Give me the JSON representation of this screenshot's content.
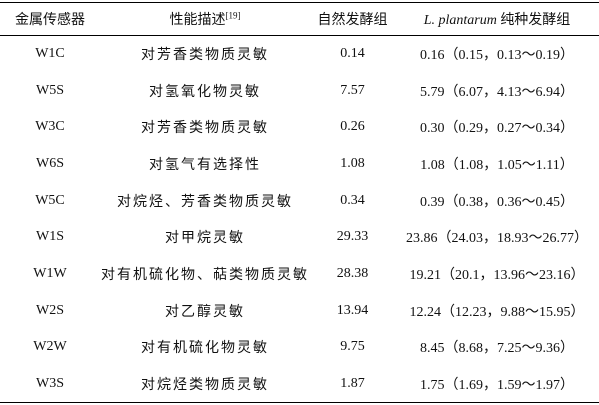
{
  "table": {
    "header": [
      "金属传感器",
      {
        "text": "性能描述",
        "ref": "[19]"
      },
      "自然发酵组",
      {
        "italic": "L. plantarum",
        "text": "纯种发酵组"
      }
    ],
    "rows": [
      [
        "W1C",
        "对芳香类物质灵敏",
        "0.14",
        "0.16（0.15，0.13～0.19）"
      ],
      [
        "W5S",
        "对氢氧化物灵敏",
        "7.57",
        "5.79（6.07，4.13～6.94）"
      ],
      [
        "W3C",
        "对芳香类物质灵敏",
        "0.26",
        "0.30（0.29，0.27～0.34）"
      ],
      [
        "W6S",
        "对氢气有选择性",
        "1.08",
        "1.08（1.08，1.05～1.11）"
      ],
      [
        "W5C",
        "对烷烃、芳香类物质灵敏",
        "0.34",
        "0.39（0.38，0.36～0.45）"
      ],
      [
        "W1S",
        "对甲烷灵敏",
        "29.33",
        "23.86（24.03，18.93～26.77）"
      ],
      [
        "W1W",
        "对有机硫化物、萜类物质灵敏",
        "28.38",
        "19.21（20.1，13.96～23.16）"
      ],
      [
        "W2S",
        "对乙醇灵敏",
        "13.94",
        "12.24（12.23，9.88～15.95）"
      ],
      [
        "W2W",
        "对有机硫化物灵敏",
        "9.75",
        "8.45（8.68，7.25～9.36）"
      ],
      [
        "W3S",
        "对烷烃类物质灵敏",
        "1.87",
        "1.75（1.69，1.59～1.97）"
      ]
    ]
  }
}
